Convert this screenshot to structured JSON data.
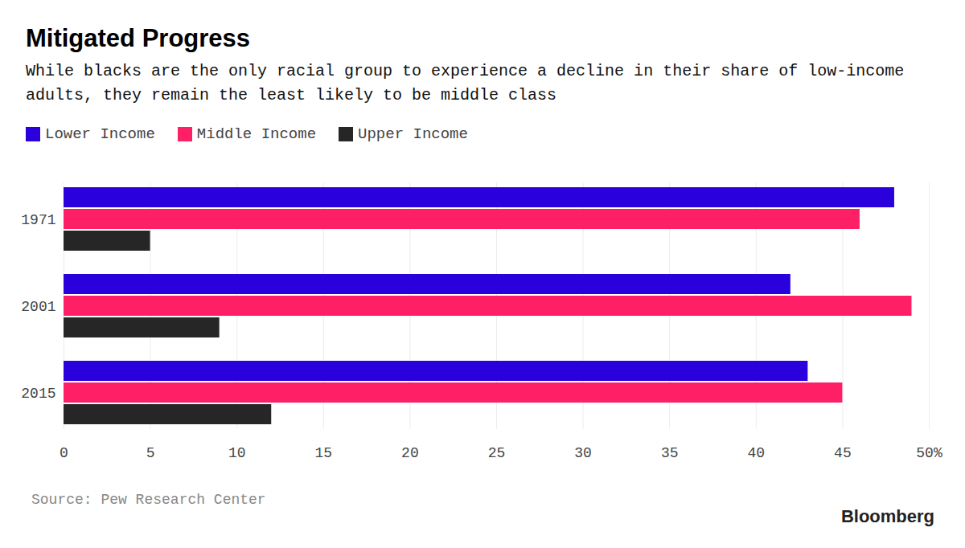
{
  "chart_data": {
    "type": "bar",
    "title": "Mitigated Progress",
    "subtitle": "While blacks are the only racial group to experience a decline in their share of low-income adults, they remain the least likely to be middle class",
    "categories": [
      "1971",
      "2001",
      "2015"
    ],
    "series": [
      {
        "name": "Lower Income",
        "color": "#2a00dd",
        "values": [
          48,
          42,
          43
        ]
      },
      {
        "name": "Middle Income",
        "color": "#ff1f66",
        "values": [
          46,
          49,
          45
        ]
      },
      {
        "name": "Upper Income",
        "color": "#262626",
        "values": [
          5,
          9,
          12
        ]
      }
    ],
    "xlim": [
      0,
      50
    ],
    "xticks": [
      0,
      5,
      10,
      15,
      20,
      25,
      30,
      35,
      40,
      45,
      {
        "value": 50,
        "label": "50%"
      }
    ],
    "orientation": "horizontal",
    "grid": true,
    "legend": "top-left",
    "data_labels": false,
    "source": "Source: Pew Research Center",
    "credit": "Bloomberg"
  }
}
